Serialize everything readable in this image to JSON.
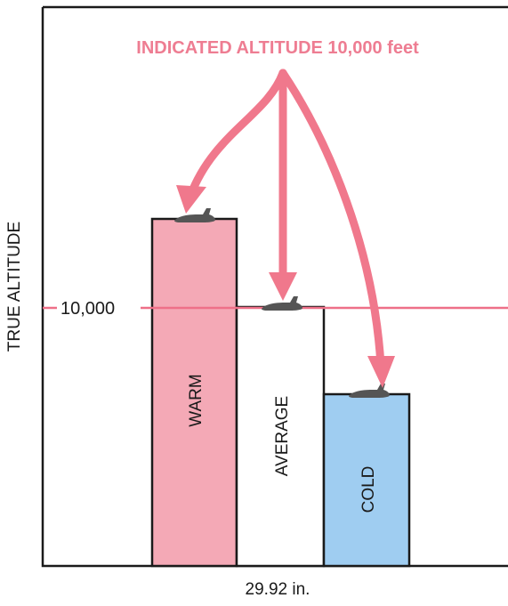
{
  "title": "INDICATED ALTITUDE 10,000 feet",
  "y_axis_label": "TRUE ALTITUDE",
  "x_axis_label": "29.92 in.",
  "reference_label": "10,000",
  "columns": [
    {
      "label": "WARM",
      "relative_altitude": 1.2
    },
    {
      "label": "AVERAGE",
      "relative_altitude": 1.0
    },
    {
      "label": "COLD",
      "relative_altitude": 0.8
    }
  ],
  "colors": {
    "pink_text": "#ee7d92",
    "arrow": "#f0788c",
    "reference_line": "#ee7088",
    "warm_fill": "#f4a9b6",
    "average_fill": "#ffffff",
    "cold_fill": "#9fcdf1",
    "outline": "#1a1a1a",
    "aircraft": "#555555"
  },
  "icons": {
    "aircraft": "airplane-icon"
  }
}
